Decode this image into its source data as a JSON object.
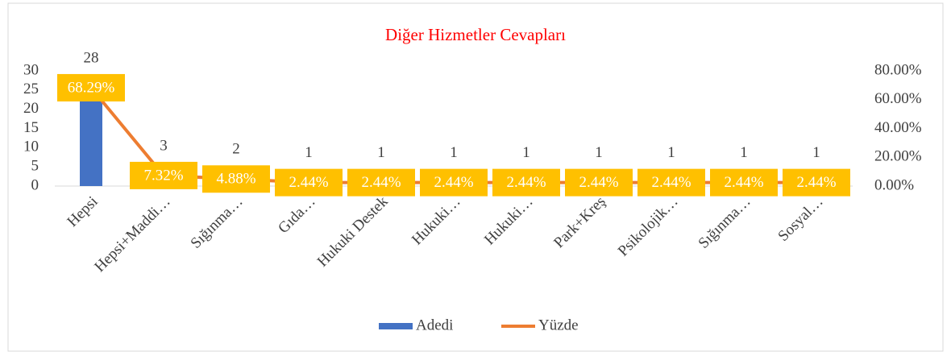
{
  "chart_data": {
    "type": "bar-line",
    "title": "Diğer Hizmetler Cevapları",
    "categories": [
      "Hepsi",
      "Hepsi+Maddi…",
      "Sığınma…",
      "Gıda…",
      "Hukuki Destek",
      "Hukuki…",
      "Hukuki…",
      "Park+Kreş",
      "Psikolojik…",
      "Sığınma…",
      "Sosyal…"
    ],
    "series": [
      {
        "name": "Adedi",
        "color": "#4472c4",
        "type": "bar",
        "values": [
          28,
          3,
          2,
          1,
          1,
          1,
          1,
          1,
          1,
          1,
          1
        ]
      },
      {
        "name": "Yüzde",
        "color": "#ed7d31",
        "type": "line",
        "axis": "y2",
        "values": [
          68.29,
          7.32,
          4.88,
          2.44,
          2.44,
          2.44,
          2.44,
          2.44,
          2.44,
          2.44,
          2.44
        ],
        "value_labels": [
          "68.29%",
          "7.32%",
          "4.88%",
          "2.44%",
          "2.44%",
          "2.44%",
          "2.44%",
          "2.44%",
          "2.44%",
          "2.44%",
          "2.44%"
        ]
      }
    ],
    "ylim": [
      0,
      30
    ],
    "yticks": [
      0,
      5,
      10,
      15,
      20,
      25,
      30
    ],
    "y2lim": [
      0,
      80
    ],
    "y2ticks": [
      {
        "value": 0,
        "label": "0.00%"
      },
      {
        "value": 20,
        "label": "20.00%"
      },
      {
        "value": 40,
        "label": "40.00%"
      },
      {
        "value": 60,
        "label": "60.00%"
      },
      {
        "value": 80,
        "label": "80.00%"
      }
    ],
    "legend": "bottom"
  }
}
